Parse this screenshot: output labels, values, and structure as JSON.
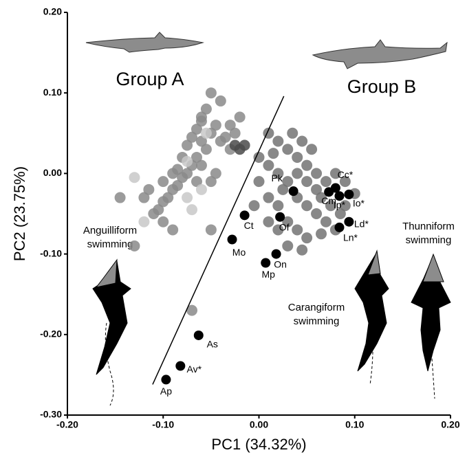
{
  "chart_data": {
    "type": "scatter",
    "xlabel": "PC1 (34.32%)",
    "ylabel": "PC2 (23.75%)",
    "xlim": [
      -0.2,
      0.2
    ],
    "ylim": [
      -0.3,
      0.2
    ],
    "xticks": [
      {
        "value": -0.2,
        "label": "-0.20"
      },
      {
        "value": -0.1,
        "label": "-0.10"
      },
      {
        "value": 0,
        "label": "0.00"
      },
      {
        "value": 0.1,
        "label": "0.10"
      },
      {
        "value": 0.2,
        "label": "0.20"
      }
    ],
    "yticks": [
      {
        "value": 0.2,
        "label": "0.20"
      },
      {
        "value": 0.1,
        "label": "0.10"
      },
      {
        "value": 0,
        "label": "0.00"
      },
      {
        "value": -0.1,
        "label": "-0.10"
      },
      {
        "value": -0.2,
        "label": "-0.20"
      },
      {
        "value": -0.3,
        "label": "-0.30"
      }
    ],
    "annotations": [
      {
        "lines": [
          "Group A"
        ]
      },
      {
        "lines": [
          "Group B"
        ]
      },
      {
        "lines": [
          "Anguilliform",
          "swimming"
        ]
      },
      {
        "lines": [
          "Carangiform",
          "swimming"
        ]
      },
      {
        "lines": [
          "Thunniform",
          "swimming"
        ]
      }
    ],
    "divider": {
      "x": [
        -0.111,
        0.026
      ],
      "y": [
        -0.262,
        0.096
      ]
    },
    "series": [
      {
        "color": "#8a8a8a",
        "x": [
          -0.05,
          -0.04,
          -0.03,
          -0.045,
          -0.035,
          -0.055,
          -0.06,
          -0.065,
          -0.07,
          -0.075,
          -0.08,
          -0.085,
          -0.09,
          -0.095,
          -0.1,
          -0.105,
          -0.11,
          -0.06,
          -0.055,
          -0.05,
          -0.04,
          -0.065,
          -0.07,
          -0.075,
          -0.08,
          -0.085,
          -0.09,
          -0.06,
          -0.05,
          -0.045,
          -0.065,
          -0.1,
          -0.115,
          -0.12,
          -0.145,
          -0.1,
          -0.09,
          -0.13,
          -0.05,
          -0.07,
          -0.06,
          -0.03,
          -0.02,
          -0.025
        ],
        "y": [
          0.05,
          0.04,
          0.03,
          0.06,
          0.045,
          0.03,
          0.04,
          0.02,
          0.01,
          0,
          -0.005,
          -0.015,
          -0.02,
          -0.03,
          -0.035,
          -0.045,
          -0.05,
          0.07,
          0.08,
          0.1,
          0.09,
          0.055,
          0.045,
          0.035,
          0.02,
          0.005,
          0,
          0.01,
          -0.01,
          0,
          -0.01,
          -0.01,
          -0.02,
          -0.03,
          -0.03,
          -0.06,
          -0.07,
          -0.09,
          -0.07,
          -0.17,
          0.065,
          0.06,
          0.07,
          0.05
        ]
      },
      {
        "color": "#c8c8c8",
        "x": [
          -0.13,
          -0.12,
          -0.07,
          -0.075,
          -0.06,
          -0.075,
          -0.055
        ],
        "y": [
          -0.005,
          -0.06,
          -0.045,
          -0.03,
          -0.02,
          0.015,
          0.05
        ]
      },
      {
        "color": "#4a4a4a",
        "x": [
          -0.025,
          -0.015,
          -0.02
        ],
        "y": [
          0.035,
          0.035,
          0.03
        ]
      },
      {
        "color": "#737373",
        "x": [
          0.01,
          0.02,
          0.03,
          0.04,
          0.05,
          0.06,
          0.07,
          0.08,
          0.09,
          0,
          0.01,
          0.02,
          0.03,
          0.04,
          0.05,
          0.06,
          0.07,
          0.08,
          0.01,
          0.02,
          0.03,
          0.04,
          0.05,
          0.03,
          0.02,
          0,
          -0.005,
          0.01,
          0.055,
          0.045,
          0.035,
          0.06,
          0.065,
          0.075,
          0.085,
          0.09,
          0.015,
          0.04,
          0.05,
          0.025,
          0.1,
          0.065,
          0.045
        ],
        "y": [
          0.05,
          0.04,
          0.03,
          0.02,
          0.01,
          0,
          -0.01,
          0,
          -0.01,
          0.02,
          0.01,
          0,
          -0.01,
          -0.03,
          -0.04,
          -0.05,
          -0.06,
          -0.07,
          -0.03,
          -0.04,
          -0.06,
          -0.07,
          -0.08,
          -0.09,
          -0.07,
          -0.01,
          -0.04,
          -0.06,
          0.03,
          0.04,
          0.05,
          -0.02,
          -0.03,
          -0.04,
          -0.05,
          -0.04,
          0.025,
          0,
          -0.01,
          -0.02,
          -0.025,
          -0.075,
          -0.095
        ]
      },
      {
        "color": "#000000",
        "labels": [
          "Pk",
          "Cm",
          "Cc*",
          "Ip*",
          "Io*",
          "Ld*",
          "Ln*",
          "Of",
          "Ct",
          "Mo",
          "On",
          "Mp",
          "As",
          "Av*",
          "Ap"
        ],
        "x": [
          0.036,
          0.073,
          0.08,
          0.084,
          0.094,
          0.094,
          0.084,
          0.022,
          -0.015,
          -0.028,
          0.018,
          0.007,
          -0.063,
          -0.082,
          -0.097
        ],
        "y": [
          -0.022,
          -0.023,
          -0.018,
          -0.028,
          -0.026,
          -0.06,
          -0.067,
          -0.054,
          -0.052,
          -0.082,
          -0.1,
          -0.111,
          -0.201,
          -0.239,
          -0.256
        ]
      }
    ]
  }
}
